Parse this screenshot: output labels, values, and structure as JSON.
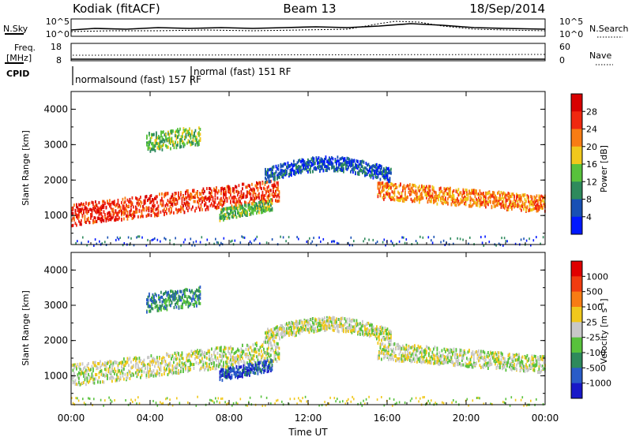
{
  "header": {
    "radar": "Kodiak (fitACF)",
    "beam": "Beam 13",
    "date": "18/Sep/2014"
  },
  "top_panel": {
    "nsky_label": "N.Sky",
    "nsky_ticks": [
      "10^5",
      "10^0"
    ],
    "nsearch_label": "N.Search",
    "nsearch_ticks": [
      "10^5",
      "10^0"
    ],
    "freq_label_1": "Freq.",
    "freq_label_2": "[MHz]",
    "freq_ticks": [
      "18",
      "8"
    ],
    "nave_label": "Nave",
    "nave_ticks": [
      "60",
      "0"
    ],
    "cpid_label": "CPID",
    "cpid_segments": [
      {
        "text": "normalsound (fast) 157 RF"
      },
      {
        "text": "normal (fast) 151 RF"
      }
    ]
  },
  "chart_data": [
    {
      "type": "heatmap",
      "title": "",
      "xlabel": "Time UT",
      "ylabel": "Slant Range [km]",
      "xlim": [
        0,
        24
      ],
      "ylim": [
        180,
        4500
      ],
      "x_ticks": [
        "00:00",
        "04:00",
        "08:00",
        "12:00",
        "16:00",
        "20:00",
        "00:00"
      ],
      "y_ticks": [
        "1000",
        "2000",
        "3000",
        "4000"
      ],
      "colorbar": {
        "label": "Power [dB]",
        "ticks": [
          "28",
          "24",
          "20",
          "16",
          "12",
          "8",
          "4"
        ],
        "colors": [
          "#0018ff",
          "#1850b4",
          "#2e8a5c",
          "#58c23c",
          "#f0c81c",
          "#f87c14",
          "#f02810",
          "#d80000"
        ]
      },
      "bands": [
        {
          "name": "main",
          "t0": 0,
          "t1": 10.5,
          "ct0": 1050,
          "ct1": 1750,
          "w": 300,
          "level": 6
        },
        {
          "name": "dusk",
          "t0": 15.5,
          "t1": 24,
          "ct0": 1750,
          "ct1": 1350,
          "w": 240,
          "level": 5
        },
        {
          "name": "arc",
          "t0": 9.8,
          "t1": 16.2,
          "c": 2150,
          "h": 350,
          "w": 200,
          "level": 1
        },
        {
          "name": "far",
          "t0": 3.8,
          "t1": 6.5,
          "ct0": 3100,
          "ct1": 3300,
          "w": 260,
          "level": 3
        },
        {
          "name": "lower",
          "t0": 7.5,
          "t1": 10.2,
          "ct0": 1050,
          "ct1": 1350,
          "w": 160,
          "level": 3
        }
      ]
    },
    {
      "type": "heatmap",
      "title": "",
      "xlabel": "Time UT",
      "ylabel": "Slant Range [km]",
      "xlim": [
        0,
        24
      ],
      "ylim": [
        180,
        4500
      ],
      "x_ticks": [
        "00:00",
        "04:00",
        "08:00",
        "12:00",
        "16:00",
        "20:00",
        "00:00"
      ],
      "y_ticks": [
        "1000",
        "2000",
        "3000",
        "4000"
      ],
      "colorbar": {
        "label": "Velocity [m s",
        "label_sup": "-1",
        "label_end": "]",
        "ticks": [
          "1000",
          "500",
          "100",
          "25",
          "-25",
          "-100",
          "-500",
          "-1000"
        ],
        "colors": [
          "#1818c8",
          "#2a5cc8",
          "#2e8a5c",
          "#58c23c",
          "#c8c8c8",
          "#f0c81c",
          "#f87c14",
          "#f03c10",
          "#e00000"
        ]
      },
      "bands": [
        {
          "name": "main",
          "t0": 0,
          "t1": 10.5,
          "ct0": 1050,
          "ct1": 1750,
          "w": 300,
          "level": 4
        },
        {
          "name": "dusk",
          "t0": 15.5,
          "t1": 24,
          "ct0": 1750,
          "ct1": 1350,
          "w": 240,
          "level": 4
        },
        {
          "name": "arc",
          "t0": 9.8,
          "t1": 16.2,
          "c": 2150,
          "h": 350,
          "w": 200,
          "level": 4
        },
        {
          "name": "far",
          "t0": 3.8,
          "t1": 6.5,
          "ct0": 3100,
          "ct1": 3300,
          "w": 260,
          "level": 2
        },
        {
          "name": "lower",
          "t0": 7.5,
          "t1": 10.2,
          "ct0": 1050,
          "ct1": 1350,
          "w": 160,
          "level": 1
        }
      ]
    }
  ]
}
